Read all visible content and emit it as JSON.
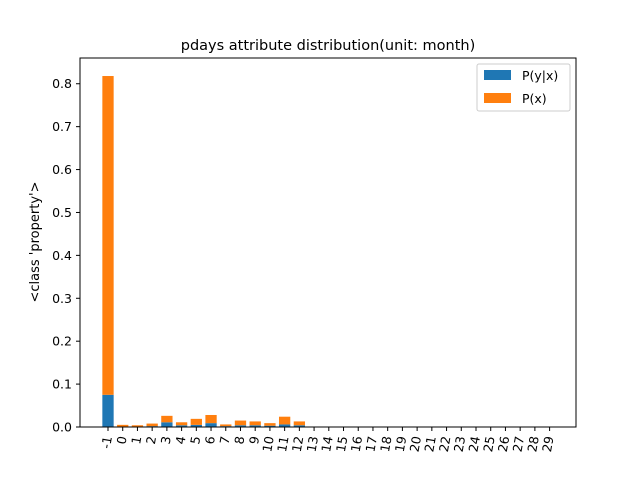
{
  "chart_data": {
    "type": "bar",
    "stacked": true,
    "title": "pdays attribute distribution(unit: month)",
    "xlabel": "",
    "ylabel": "<class 'property'>",
    "ylim": [
      0,
      0.86
    ],
    "yticks": [
      "0.0",
      "0.1",
      "0.2",
      "0.3",
      "0.4",
      "0.5",
      "0.6",
      "0.7",
      "0.8"
    ],
    "categories": [
      "-1",
      "0",
      "1",
      "2",
      "3",
      "4",
      "5",
      "6",
      "7",
      "8",
      "9",
      "10",
      "11",
      "12",
      "13",
      "14",
      "15",
      "16",
      "17",
      "18",
      "19",
      "20",
      "21",
      "22",
      "23",
      "24",
      "25",
      "26",
      "27",
      "28",
      "29"
    ],
    "series": [
      {
        "name": "P(y|x)",
        "color": "#1f77b4",
        "values": [
          0.075,
          0.001,
          0.001,
          0.002,
          0.011,
          0.004,
          0.005,
          0.009,
          0.002,
          0.004,
          0.004,
          0.003,
          0.006,
          0.004,
          0,
          0,
          0,
          0,
          0,
          0,
          0,
          0,
          0,
          0,
          0,
          0,
          0,
          0,
          0,
          0,
          0
        ]
      },
      {
        "name": "P(x)",
        "color": "#ff7f0e",
        "values": [
          0.743,
          0.004,
          0.003,
          0.006,
          0.015,
          0.007,
          0.014,
          0.019,
          0.004,
          0.011,
          0.009,
          0.006,
          0.018,
          0.009,
          0,
          0,
          0,
          0,
          0,
          0,
          0,
          0,
          0,
          0,
          0,
          0,
          0,
          0,
          0,
          0,
          0
        ]
      }
    ],
    "legend": "top-right",
    "grid": false
  }
}
